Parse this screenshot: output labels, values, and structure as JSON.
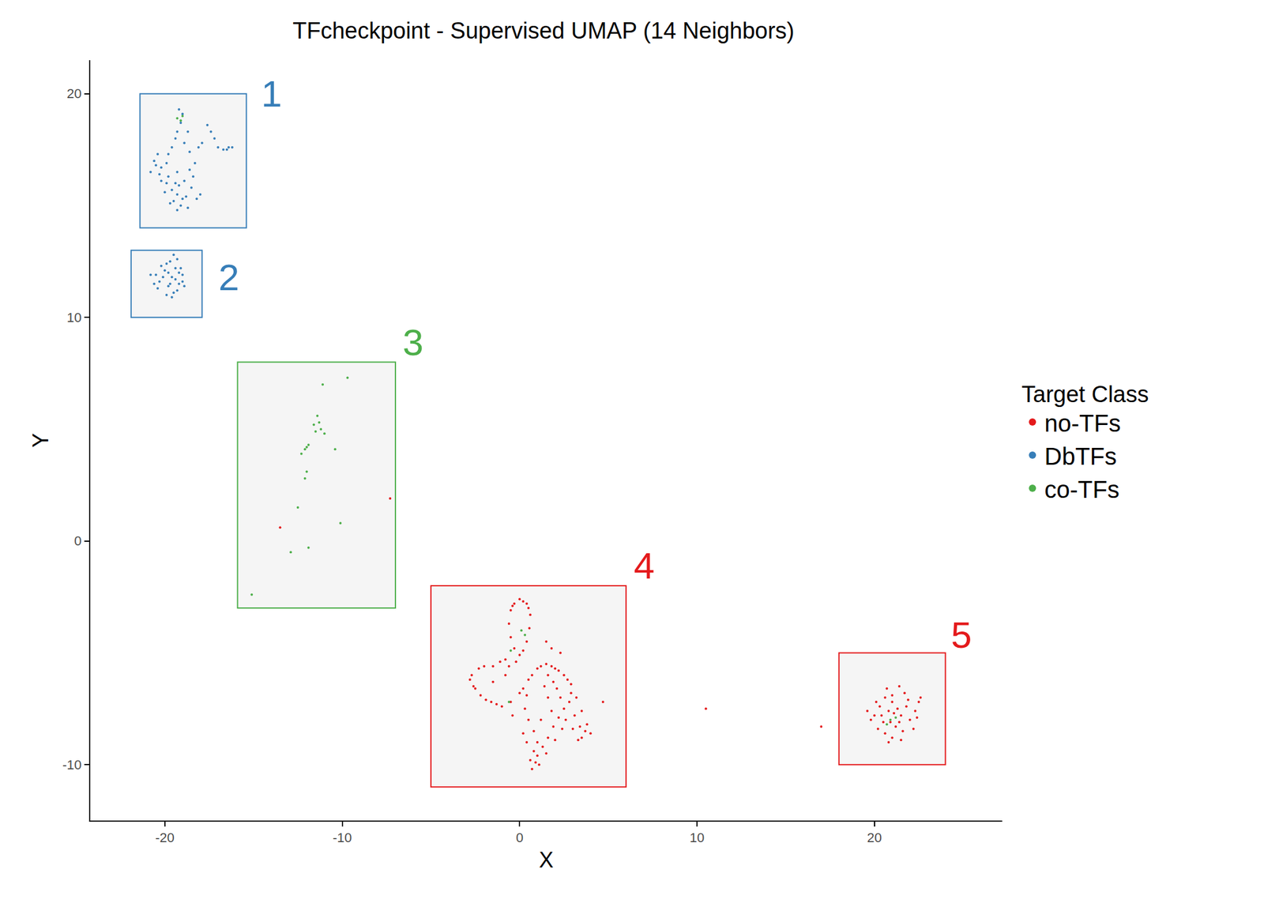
{
  "chart_data": {
    "type": "scatter",
    "title": "TFcheckpoint - Supervised UMAP (14 Neighbors)",
    "x_label": "X",
    "y_label": "Y",
    "xlim": [
      -24.2,
      27.2
    ],
    "ylim": [
      -12.5,
      21.5
    ],
    "xticks": [
      -20,
      -10,
      0,
      10,
      20
    ],
    "yticks": [
      -10,
      0,
      10,
      20
    ],
    "grid": false,
    "legend": "right",
    "legend_title": "Target Class",
    "series": [
      {
        "name": "no-TFs",
        "color": "#e41a1c",
        "x": [
          0,
          0.4,
          0.6,
          0.55,
          0.4,
          0.2,
          0,
          -0.3,
          -0.5,
          -0.6,
          -0.5,
          -0.3,
          0.2,
          0.5,
          -0.4,
          -1.5,
          -2.3,
          -2.7,
          -2.6,
          -2.2,
          -1.6,
          -1.0,
          -0.5,
          0,
          0.5,
          1.0,
          1.5,
          2.0,
          2.5,
          2.9,
          3.2,
          3.5,
          3.8,
          4.0,
          3.5,
          3.0,
          -0.8,
          -1.1,
          -2.0,
          -2.8,
          -1.9,
          -1.3,
          0.2,
          0.7,
          1.2,
          1.8,
          2.2,
          2.7,
          1.6,
          1.9,
          1.4,
          -0.2,
          -0.6,
          0.3,
          0.5,
          0.8,
          1.0,
          0.8,
          0.6,
          0.7,
          1.0,
          1.3,
          1.6,
          1.9,
          2.2,
          2.5,
          2.8,
          2.4,
          2.0,
          1.5,
          0.4,
          0.2,
          1.2,
          1.8,
          2.6,
          3.1,
          3.4,
          1.1,
          0.9,
          2.9,
          2.3,
          3.3,
          3.7,
          -1.5,
          -0.8,
          1.5,
          1.8,
          2.3,
          4.7,
          -2.5,
          0.4,
          -0.4,
          1.6,
          2.1,
          -13.5,
          -7.3,
          10.5,
          17.0,
          20.0,
          20.3,
          20.5,
          20.8,
          21.0,
          21.2,
          21.5,
          21.8,
          22.0,
          22.3,
          22.5,
          21.7,
          21.4,
          21.0,
          20.6,
          20.2,
          20.6,
          21.0,
          20.8,
          19.8,
          19.6,
          22.2,
          21.6,
          21.3,
          20.9,
          20.4,
          21.9,
          22.4,
          20.7,
          21.1,
          21.4,
          20.1,
          22.6,
          21.5
        ],
        "y": [
          -2.6,
          -2.8,
          -3.3,
          -3.9,
          -4.5,
          -4.9,
          -5.1,
          -4.8,
          -4.3,
          -3.7,
          -3.1,
          -2.8,
          -2.7,
          -3.0,
          -2.9,
          -5.6,
          -5.7,
          -6.0,
          -6.5,
          -6.9,
          -7.2,
          -7.4,
          -7.2,
          -6.8,
          -6.2,
          -5.7,
          -5.5,
          -5.7,
          -6.0,
          -6.4,
          -7.0,
          -7.6,
          -8.2,
          -8.6,
          -8.8,
          -8.4,
          -5.3,
          -5.4,
          -5.6,
          -6.2,
          -7.1,
          -7.3,
          -6.6,
          -6.0,
          -5.6,
          -5.6,
          -5.8,
          -6.2,
          -6.0,
          -6.3,
          -6.5,
          -5.4,
          -5.6,
          -7.5,
          -8.0,
          -8.5,
          -9.0,
          -9.4,
          -9.8,
          -10.2,
          -9.6,
          -9.2,
          -8.8,
          -8.3,
          -7.9,
          -7.5,
          -7.2,
          -8.4,
          -8.9,
          -9.5,
          -9.0,
          -8.6,
          -8.0,
          -7.6,
          -8.0,
          -7.8,
          -8.3,
          -10.0,
          -9.9,
          -6.8,
          -7.0,
          -8.9,
          -8.5,
          -6.3,
          -6.0,
          -4.5,
          -4.8,
          -5.0,
          -7.2,
          -6.6,
          -6.9,
          -7.8,
          -7.0,
          -6.6,
          0.6,
          1.9,
          -7.5,
          -8.3,
          -7.8,
          -7.4,
          -8.1,
          -7.6,
          -7.2,
          -8.3,
          -7.8,
          -7.4,
          -8.0,
          -7.6,
          -7.2,
          -6.8,
          -6.5,
          -6.9,
          -7.0,
          -8.4,
          -8.6,
          -8.8,
          -9.0,
          -8.0,
          -7.6,
          -8.4,
          -8.5,
          -7.5,
          -8.1,
          -7.8,
          -7.1,
          -7.9,
          -6.6,
          -7.7,
          -8.1,
          -7.2,
          -7.0,
          -8.9
        ]
      },
      {
        "name": "DbTFs",
        "color": "#377eb8",
        "x": [
          -19.2,
          -19.0,
          -19.1,
          -19.3,
          -19.4,
          -19.6,
          -19.8,
          -19.9,
          -20.2,
          -20.5,
          -20.3,
          -19.8,
          -19.4,
          -19.6,
          -19.3,
          -19.0,
          -19.1,
          -19.3,
          -18.8,
          -18.5,
          -18.4,
          -18.6,
          -18.3,
          -18.6,
          -18.9,
          -18.7,
          -17.4,
          -17.2,
          -17.0,
          -16.7,
          -16.4,
          -16.5,
          -16.2,
          -17.6,
          -17.9,
          -18.1,
          -20.4,
          -20.6,
          -20.2,
          -20.8,
          -19.2,
          -18.9,
          -18.2,
          -18.0,
          -19.5,
          -19.7,
          -18.7,
          -19.9,
          -20.0,
          -19.3,
          -20.5,
          -20.3,
          -20.0,
          -19.8,
          -19.6,
          -19.4,
          -19.2,
          -19.0,
          -19.9,
          -19.5,
          -19.7,
          -19.3,
          -20.2,
          -19.1,
          -18.9,
          -20.4,
          -19.6,
          -19.8,
          -20.1,
          -19.4,
          -19.7,
          -19.2,
          -20.6,
          -19.9,
          -19.0,
          -19.5,
          -20.8,
          -19.3
        ],
        "y": [
          19.3,
          19.1,
          18.7,
          18.3,
          18.0,
          17.6,
          17.3,
          16.9,
          16.7,
          16.8,
          16.4,
          16.3,
          16.0,
          15.7,
          15.5,
          15.3,
          15.0,
          14.8,
          15.4,
          15.8,
          16.3,
          16.6,
          16.9,
          17.4,
          17.8,
          18.3,
          18.3,
          18.0,
          17.6,
          17.5,
          17.6,
          17.5,
          17.6,
          18.6,
          17.8,
          17.6,
          17.3,
          17.0,
          16.1,
          16.5,
          15.9,
          16.1,
          15.3,
          15.5,
          15.2,
          15.1,
          14.9,
          16.0,
          15.6,
          16.5,
          11.9,
          11.6,
          12.1,
          11.4,
          11.8,
          12.2,
          11.5,
          11.9,
          11.0,
          11.1,
          12.5,
          12.6,
          12.3,
          12.2,
          11.4,
          11.3,
          10.9,
          12.0,
          11.8,
          11.7,
          11.5,
          12.0,
          11.5,
          12.4,
          11.6,
          12.8,
          11.9,
          11.2
        ]
      },
      {
        "name": "co-TFs",
        "color": "#4daf4a",
        "x": [
          -11.5,
          -11.3,
          -11.2,
          -11.0,
          -11.4,
          -11.6,
          -12.1,
          -12.3,
          -12.0,
          -11.9,
          -11.1,
          -9.7,
          -10.4,
          -12.0,
          -12.1,
          -12.5,
          -10.1,
          -12.9,
          -11.9,
          -15.1,
          0.1,
          -0.5,
          -0.6,
          0.3,
          20.7,
          20.9,
          21.2,
          -19.0,
          -19.1,
          -19.3
        ],
        "y": [
          4.9,
          5.3,
          5.0,
          4.8,
          5.6,
          5.2,
          4.1,
          3.9,
          4.2,
          4.3,
          7.0,
          7.3,
          4.1,
          3.1,
          2.8,
          1.5,
          0.8,
          -0.5,
          -0.3,
          -2.4,
          -4.0,
          -4.9,
          -7.2,
          -4.2,
          -8.2,
          -8.0,
          -7.9,
          19.0,
          18.8,
          18.9
        ]
      }
    ],
    "boxes": [
      {
        "label": "1",
        "color": "#377eb8",
        "x0": -21.4,
        "x1": -15.4,
        "y0": 14.0,
        "y1": 20.0,
        "label_x": -14.0,
        "label_y": 20.0
      },
      {
        "label": "2",
        "color": "#377eb8",
        "x0": -21.9,
        "x1": -17.9,
        "y0": 10.0,
        "y1": 13.0,
        "label_x": -16.4,
        "label_y": 11.8
      },
      {
        "label": "3",
        "color": "#4daf4a",
        "x0": -15.9,
        "x1": -7.0,
        "y0": -3.0,
        "y1": 8.0,
        "label_x": -6.0,
        "label_y": 8.9
      },
      {
        "label": "4",
        "color": "#e41a1c",
        "x0": -5.0,
        "x1": 6.0,
        "y0": -11.0,
        "y1": -2.0,
        "label_x": 7.0,
        "label_y": -1.1
      },
      {
        "label": "5",
        "color": "#e41a1c",
        "x0": 18.0,
        "x1": 24.0,
        "y0": -10.0,
        "y1": -5.0,
        "label_x": 24.9,
        "label_y": -4.2
      }
    ]
  }
}
